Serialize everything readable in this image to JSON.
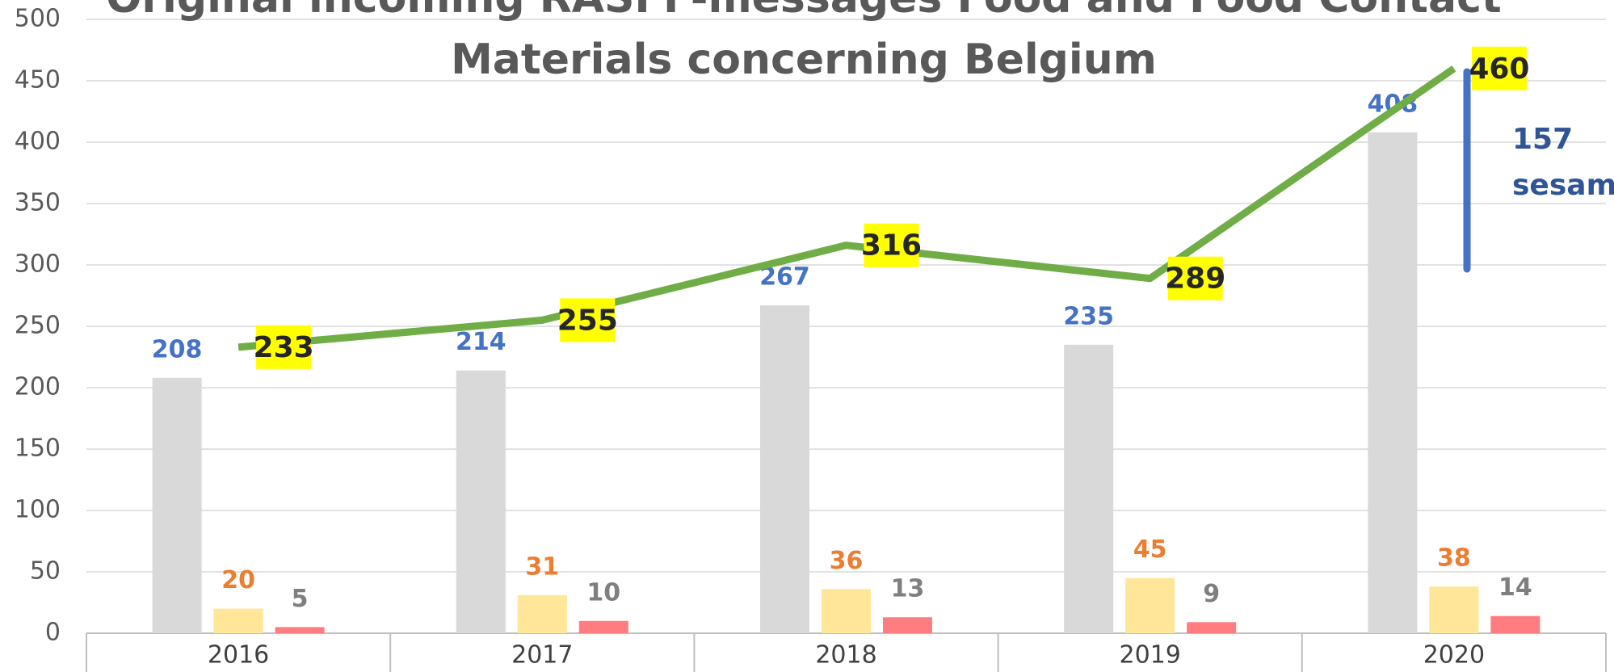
{
  "chart_data": {
    "type": "bar_line",
    "title": "Original incoming RASFF-messages Food and Food Contact Materials concerning Belgium",
    "categories": [
      "2016",
      "2017",
      "2018",
      "2019",
      "2020"
    ],
    "series": [
      {
        "color": "#d9d9d9",
        "label_color": "#4472c4",
        "values": [
          208,
          214,
          267,
          235,
          408
        ]
      },
      {
        "color": "#ffe699",
        "label_color": "#ed7d31",
        "values": [
          20,
          31,
          36,
          45,
          38
        ]
      },
      {
        "color": "#ff7c80",
        "label_color": "#7f7f7f",
        "values": [
          5,
          10,
          13,
          9,
          14
        ]
      },
      {
        "type": "line",
        "color": "#70ad47",
        "label_color": "#262626",
        "label_background": "#ffff00",
        "values": [
          233,
          255,
          316,
          289,
          460
        ]
      }
    ],
    "annotations": [
      "157",
      "sesam"
    ],
    "ylim": [
      0,
      500
    ],
    "yticks": [
      0,
      50,
      100,
      150,
      200,
      250,
      300,
      350,
      400,
      450,
      500
    ],
    "grid": true
  }
}
